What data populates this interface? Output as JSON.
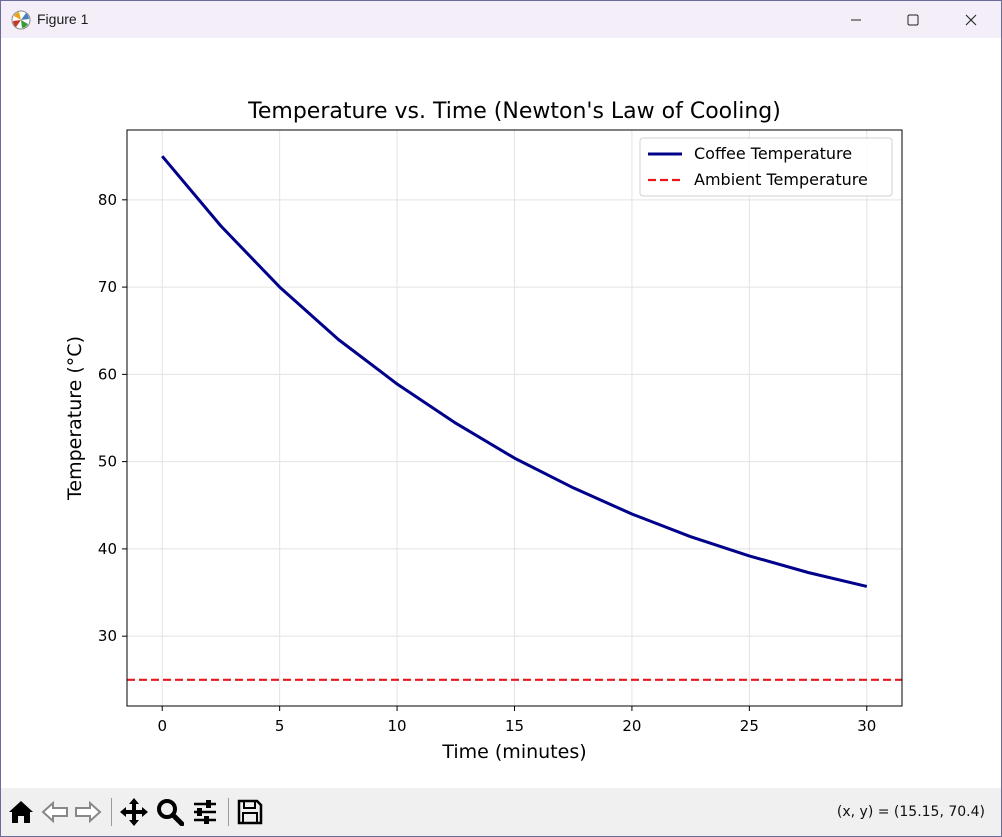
{
  "window": {
    "title": "Figure 1",
    "icons": [
      "matplotlib-app-icon",
      "minimize-icon",
      "maximize-icon",
      "close-icon"
    ]
  },
  "toolbar": {
    "buttons": [
      "home-icon",
      "back-icon",
      "forward-icon",
      "pan-icon",
      "zoom-icon",
      "configure-subplots-icon",
      "save-icon"
    ],
    "coords_text": "(x, y) = (15.15, 70.4)"
  },
  "chart_data": {
    "type": "line",
    "title": "Temperature vs. Time (Newton's Law of Cooling)",
    "xlabel": "Time (minutes)",
    "ylabel": "Temperature (°C)",
    "xlim": [
      -1.5,
      31.5
    ],
    "ylim": [
      22,
      88
    ],
    "xticks": [
      0,
      5,
      10,
      15,
      20,
      25,
      30
    ],
    "yticks": [
      30,
      40,
      50,
      60,
      70,
      80
    ],
    "grid": true,
    "legend_position": "top-right",
    "series": [
      {
        "name": "Coffee Temperature",
        "style": "solid",
        "color": "#00008b",
        "x": [
          0,
          2.5,
          5,
          7.5,
          10,
          12.5,
          15,
          17.5,
          20,
          22.5,
          25,
          27.5,
          30
        ],
        "y": [
          85.0,
          77.0,
          70.0,
          64.0,
          58.9,
          54.4,
          50.4,
          47.0,
          44.0,
          41.4,
          39.2,
          37.3,
          35.7
        ]
      },
      {
        "name": "Ambient Temperature",
        "style": "dashed",
        "color": "#e41a1c",
        "x": [
          -1.5,
          31.5
        ],
        "y": [
          25,
          25
        ]
      }
    ]
  }
}
